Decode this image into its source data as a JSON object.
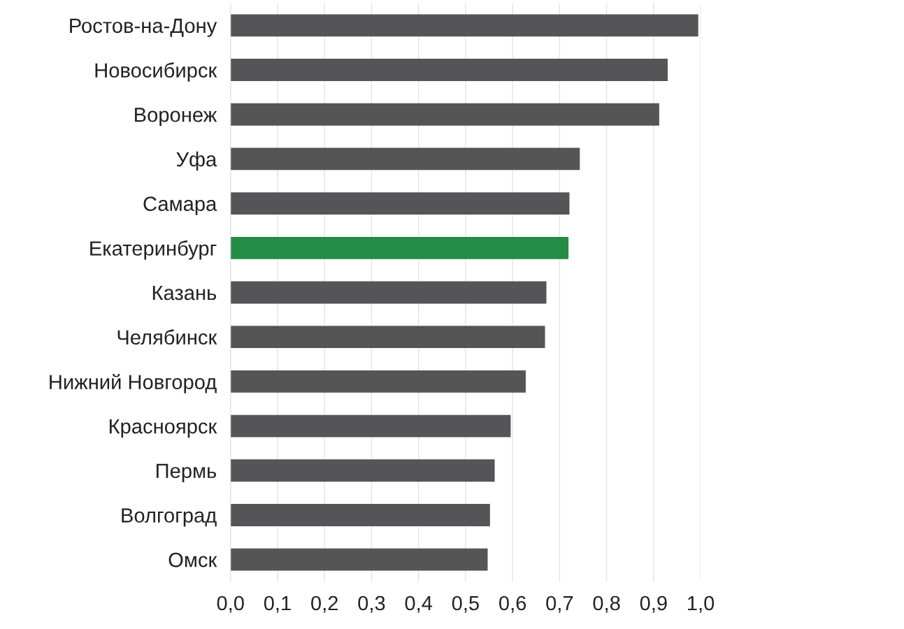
{
  "chart_data": {
    "type": "bar",
    "orientation": "horizontal",
    "categories": [
      "Ростов-на-Дону",
      "Новосибирск",
      "Воронеж",
      "Уфа",
      "Самара",
      "Екатеринбург",
      "Казань",
      "Челябинск",
      "Нижний Новгород",
      "Красноярск",
      "Пермь",
      "Волгоград",
      "Омск"
    ],
    "values": [
      0.995,
      0.93,
      0.912,
      0.743,
      0.721,
      0.719,
      0.672,
      0.669,
      0.628,
      0.596,
      0.562,
      0.552,
      0.547
    ],
    "colors": [
      "#555557",
      "#555557",
      "#555557",
      "#555557",
      "#555557",
      "#238c47",
      "#555557",
      "#555557",
      "#555557",
      "#555557",
      "#555557",
      "#555557",
      "#555557"
    ],
    "xlim": [
      0,
      1.0
    ],
    "xticks": [
      {
        "value": 0,
        "label": "0,0"
      },
      {
        "value": 0.1,
        "label": "0,1"
      },
      {
        "value": 0.2,
        "label": "0,2"
      },
      {
        "value": 0.3,
        "label": "0,3"
      },
      {
        "value": 0.4,
        "label": "0,4"
      },
      {
        "value": 0.5,
        "label": "0,5"
      },
      {
        "value": 0.6,
        "label": "0,6"
      },
      {
        "value": 0.7,
        "label": "0,7"
      },
      {
        "value": 0.8,
        "label": "0,8"
      },
      {
        "value": 0.9,
        "label": "0,9"
      },
      {
        "value": 1.0,
        "label": "1,0"
      }
    ],
    "grid": "x",
    "legend": false
  }
}
